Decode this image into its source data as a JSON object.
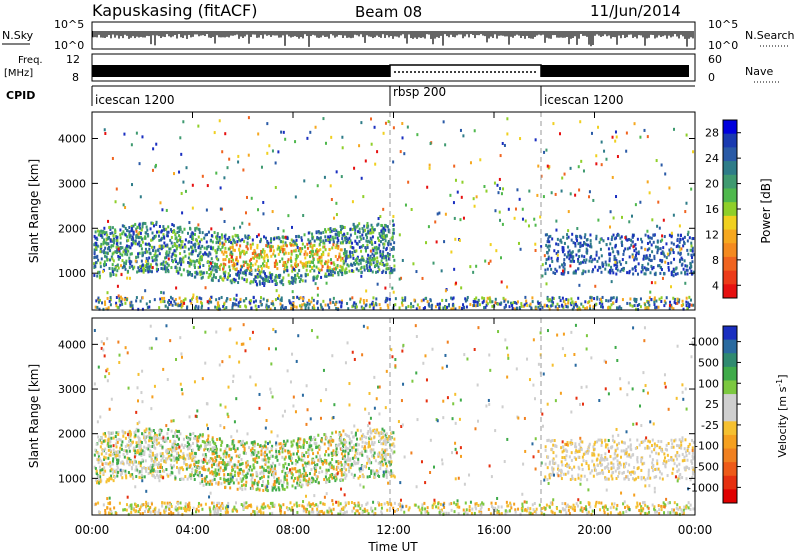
{
  "header": {
    "station": "Kapuskasing (fitACF)",
    "beam": "Beam 08",
    "date": "11/Jun/2014"
  },
  "noise_panel": {
    "left_label": "N.Sky",
    "left_ticks": [
      "10^5",
      "10^0"
    ],
    "right_ticks": [
      "10^5",
      "10^0"
    ],
    "right_label": "N.Search"
  },
  "freq_panel": {
    "left_label_1": "Freq.",
    "left_label_2": "[MHz]",
    "left_ticks": [
      "12",
      "8"
    ],
    "right_ticks": [
      "60",
      "0"
    ],
    "right_label": "Nave"
  },
  "cpid": {
    "label": "CPID",
    "segments": [
      {
        "name": "icescan 1200",
        "start_hour": 0
      },
      {
        "name": "rbsp 200",
        "start_hour": 12
      },
      {
        "name": "icescan 1200",
        "start_hour": 18
      }
    ]
  },
  "chart_data": [
    {
      "type": "heatmap",
      "quantity": "Power",
      "ylabel": "Slant Range [km]",
      "yticks": [
        "1000",
        "2000",
        "3000",
        "4000"
      ],
      "ylim": [
        180,
        4590
      ],
      "xlim": [
        0,
        24
      ],
      "colorbar": {
        "label": "Power [dB]",
        "ticks": [
          "4",
          "8",
          "12",
          "16",
          "20",
          "24",
          "28"
        ],
        "colors": [
          "#0000dd",
          "#1a3ab0",
          "#2a5aa6",
          "#2e7c88",
          "#3f9a70",
          "#4fb84d",
          "#8fcf2a",
          "#f0d020",
          "#f6a820",
          "#f48a20",
          "#f06420",
          "#ec3a18",
          "#e61010"
        ]
      }
    },
    {
      "type": "heatmap",
      "quantity": "Velocity",
      "ylabel": "Slant Range [km]",
      "yticks": [
        "1000",
        "2000",
        "3000",
        "4000"
      ],
      "ylim": [
        180,
        4590
      ],
      "xlim": [
        0,
        24
      ],
      "colorbar": {
        "label": "Velocity [m s^-1]",
        "ticks": [
          "1000",
          "500",
          "100",
          "25",
          "-25",
          "-100",
          "-500",
          "-1000"
        ],
        "colors": [
          "#1a2fc0",
          "#2a6aa0",
          "#2f8a70",
          "#3fab4a",
          "#7cc840",
          "#cfcfcf",
          "#cfcfcf",
          "#f5c030",
          "#f5a020",
          "#f08020",
          "#ee5a18",
          "#e63010",
          "#e00000"
        ]
      }
    }
  ],
  "xaxis": {
    "label": "Time UT",
    "ticks": [
      "00:00",
      "04:00",
      "08:00",
      "12:00",
      "16:00",
      "20:00",
      "00:00"
    ]
  }
}
